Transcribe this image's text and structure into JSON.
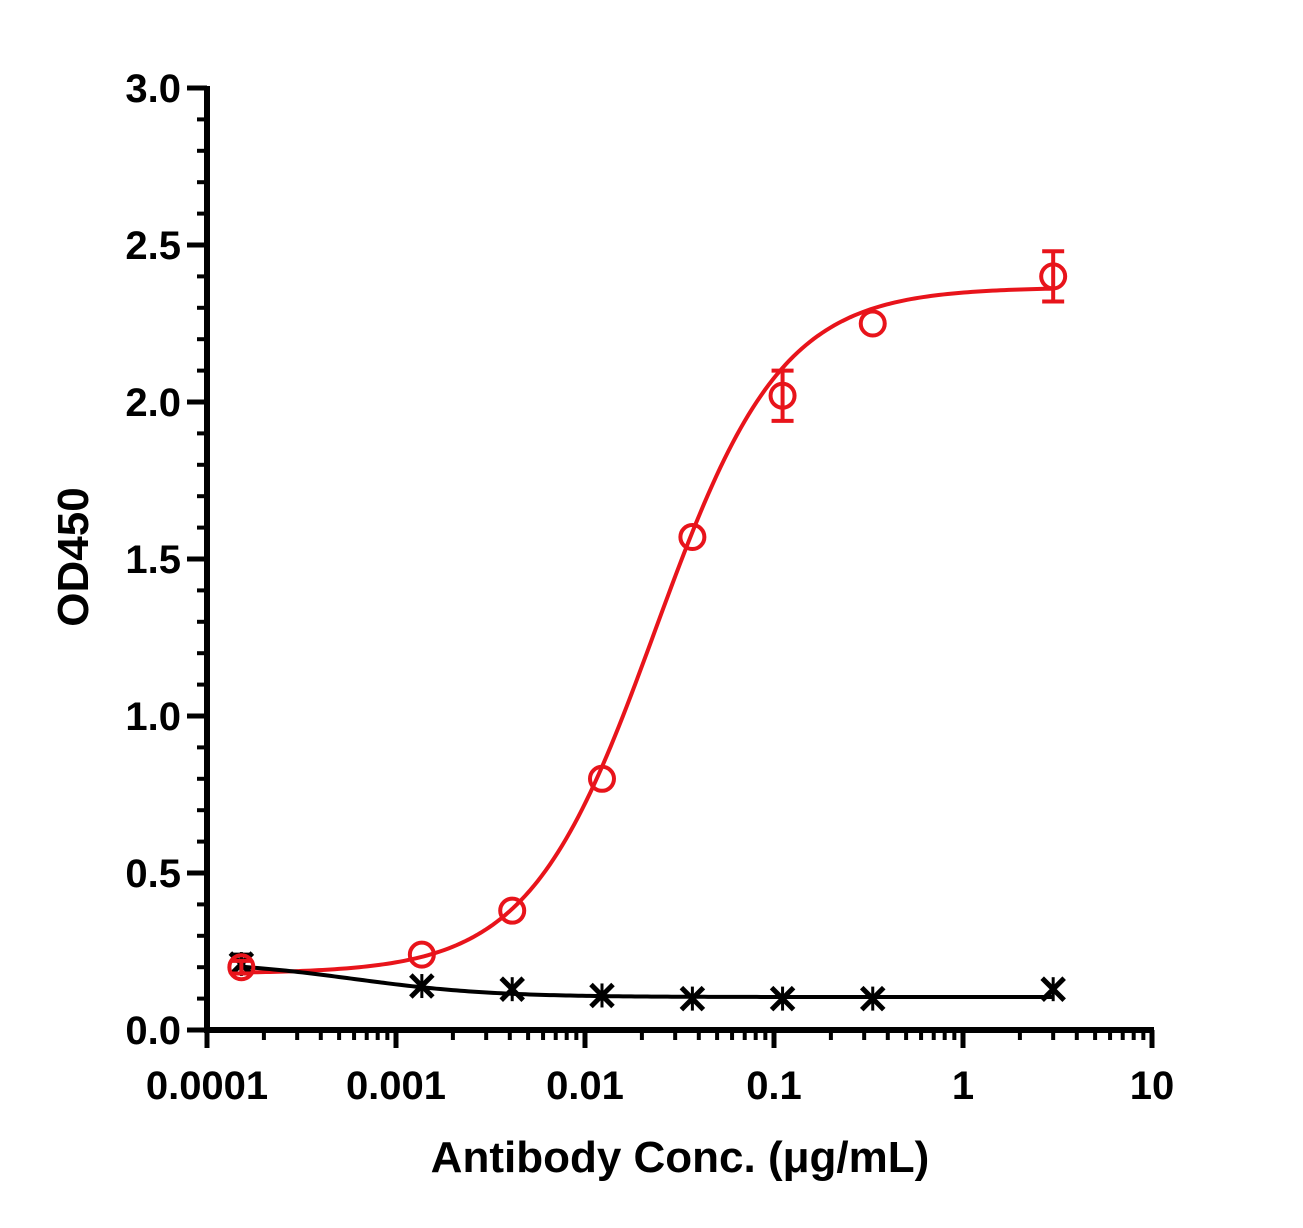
{
  "chart_data": {
    "type": "scatter",
    "xlabel": "Antibody Conc. (μg/mL)",
    "ylabel": "OD450",
    "x_scale": "log",
    "xlim": [
      0.0001,
      10
    ],
    "ylim": [
      0,
      3.0
    ],
    "x_ticks": [
      {
        "value": 0.0001,
        "label": "0.0001"
      },
      {
        "value": 0.001,
        "label": "0.001"
      },
      {
        "value": 0.01,
        "label": "0.01"
      },
      {
        "value": 0.1,
        "label": "0.1"
      },
      {
        "value": 1,
        "label": "1"
      },
      {
        "value": 10,
        "label": "10"
      }
    ],
    "y_ticks": [
      {
        "value": 0,
        "label": "0.0"
      },
      {
        "value": 0.5,
        "label": "0.5"
      },
      {
        "value": 1.0,
        "label": "1.0"
      },
      {
        "value": 1.5,
        "label": "1.5"
      },
      {
        "value": 2.0,
        "label": "2.0"
      },
      {
        "value": 2.5,
        "label": "2.5"
      },
      {
        "value": 3.0,
        "label": "3.0"
      }
    ],
    "grid": false,
    "legend": "none",
    "series": [
      {
        "color": "#e8141b",
        "marker": "open-circle",
        "fit": "sigmoidal",
        "points": [
          {
            "x": 0.000152,
            "y": 0.2,
            "err": 0.02
          },
          {
            "x": 0.00137,
            "y": 0.24,
            "err": 0.01
          },
          {
            "x": 0.00412,
            "y": 0.38,
            "err": 0.01
          },
          {
            "x": 0.0123,
            "y": 0.8,
            "err": 0.01
          },
          {
            "x": 0.037,
            "y": 1.57,
            "err": 0.01
          },
          {
            "x": 0.111,
            "y": 2.02,
            "err": 0.08
          },
          {
            "x": 0.333,
            "y": 2.25,
            "err": 0.01
          },
          {
            "x": 3.0,
            "y": 2.4,
            "err": 0.08
          }
        ],
        "fit_params": {
          "bottom": 0.18,
          "top": 2.365,
          "ec50": 0.0235,
          "hill": 1.3
        }
      },
      {
        "color": "#000000",
        "marker": "asterisk",
        "fit": "sigmoidal",
        "points": [
          {
            "x": 0.000152,
            "y": 0.21,
            "err": 0.03
          },
          {
            "x": 0.00137,
            "y": 0.14,
            "err": 0.01
          },
          {
            "x": 0.00412,
            "y": 0.13,
            "err": 0.01
          },
          {
            "x": 0.0123,
            "y": 0.11,
            "err": 0.01
          },
          {
            "x": 0.037,
            "y": 0.1,
            "err": 0.01
          },
          {
            "x": 0.111,
            "y": 0.1,
            "err": 0.01
          },
          {
            "x": 0.333,
            "y": 0.1,
            "err": 0.01
          },
          {
            "x": 3.0,
            "y": 0.13,
            "err": 0.01
          }
        ],
        "fit_params": {
          "bottom": 0.105,
          "top": 0.22,
          "ec50": 0.0006,
          "hill": -1.2
        }
      }
    ]
  }
}
